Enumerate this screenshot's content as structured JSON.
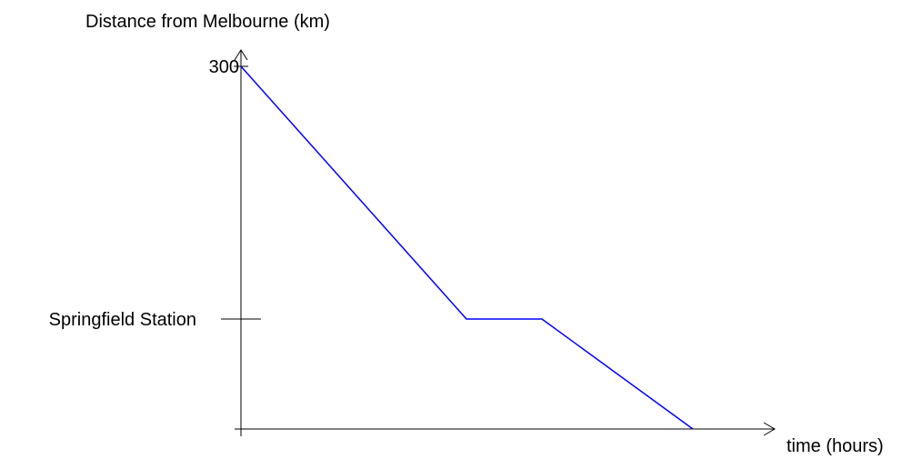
{
  "chart_data": {
    "type": "line",
    "title": "",
    "ylabel": "Distance from Melbourne (km)",
    "xlabel": "time (hours)",
    "y_ticks": [
      {
        "value": 300,
        "label": "300"
      },
      {
        "value": 91,
        "label": "Springfield Station"
      }
    ],
    "ylim": [
      0,
      300
    ],
    "x_units": "hours (unlabelled axis)",
    "grid": false,
    "legend": "none",
    "series": [
      {
        "color": "#0000ff",
        "points": [
          {
            "x": 0,
            "y": 300
          },
          {
            "x": 248,
            "y": 91
          },
          {
            "x": 331,
            "y": 91
          },
          {
            "x": 497,
            "y": 0
          }
        ]
      }
    ]
  }
}
